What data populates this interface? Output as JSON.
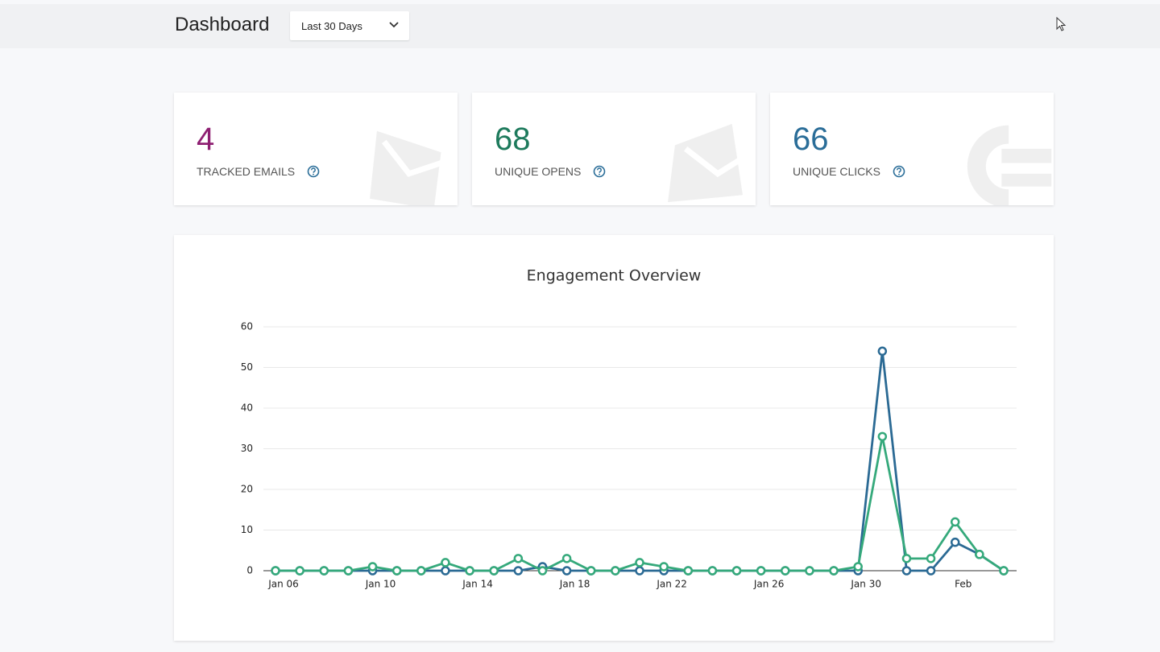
{
  "header": {
    "title": "Dashboard",
    "range": "Last 30 Days"
  },
  "cards": [
    {
      "value": 4,
      "label": "TRACKED EMAILS",
      "color": "#8e1f72"
    },
    {
      "value": 68,
      "label": "UNIQUE OPENS",
      "color": "#1d7a5c"
    },
    {
      "value": 66,
      "label": "UNIQUE CLICKS",
      "color": "#2a6d98"
    }
  ],
  "chart_data": {
    "type": "line",
    "title": "Engagement Overview",
    "categories": [
      "Jan 06",
      null,
      null,
      null,
      "Jan 10",
      null,
      null,
      null,
      "Jan 14",
      null,
      null,
      null,
      "Jan 18",
      null,
      null,
      null,
      "Jan 22",
      null,
      null,
      null,
      "Jan 26",
      null,
      null,
      null,
      "Jan 30",
      null,
      null,
      null,
      "Feb",
      null,
      null
    ],
    "series": [
      {
        "color": "#2b6a94",
        "values": [
          0,
          0,
          0,
          0,
          0,
          0,
          0,
          0,
          0,
          0,
          0,
          1,
          0,
          0,
          0,
          0,
          0,
          0,
          0,
          0,
          0,
          0,
          0,
          0,
          0,
          54,
          0,
          0,
          7,
          4,
          0
        ]
      },
      {
        "color": "#35a97b",
        "values": [
          0,
          0,
          0,
          0,
          1,
          0,
          0,
          2,
          0,
          0,
          3,
          0,
          3,
          0,
          0,
          2,
          1,
          0,
          0,
          0,
          0,
          0,
          0,
          0,
          1,
          33,
          3,
          3,
          12,
          4,
          0
        ]
      }
    ],
    "ylim": [
      0,
      60
    ],
    "yticks": [
      0,
      10,
      20,
      30,
      40,
      50,
      60
    ],
    "grid": true
  }
}
